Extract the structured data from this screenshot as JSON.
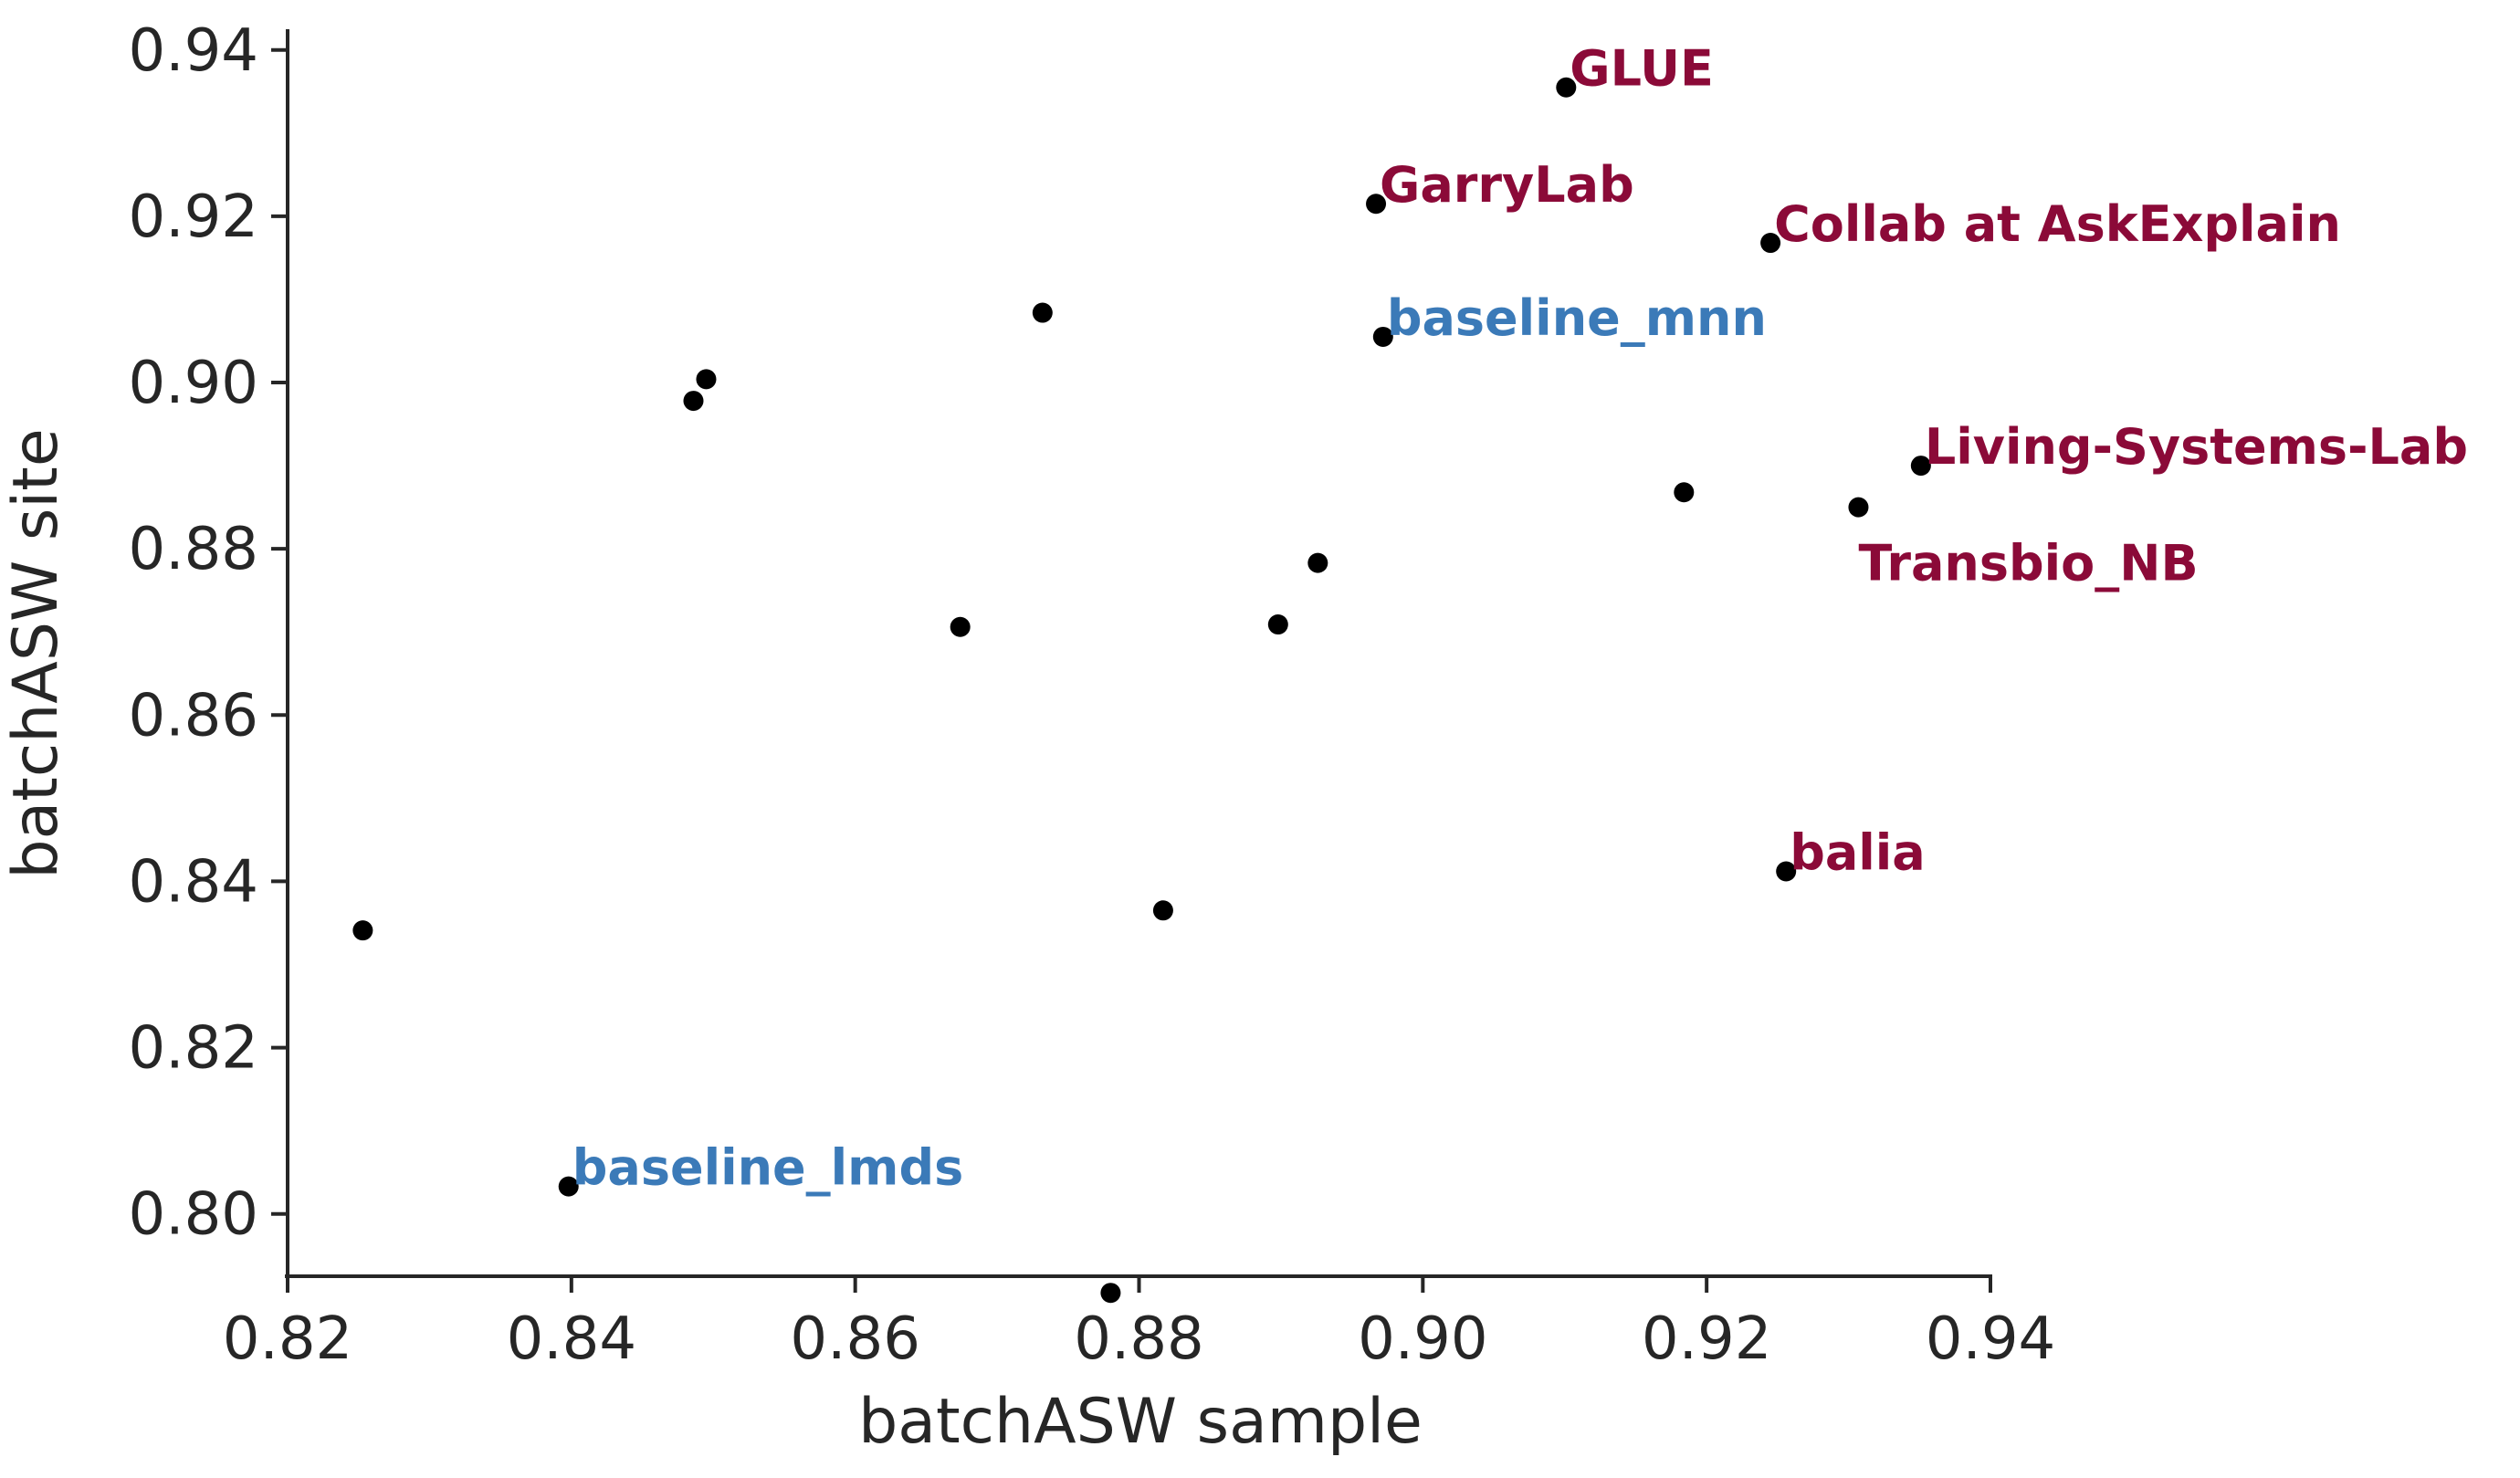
{
  "chart_data": {
    "type": "scatter",
    "xlabel": "batchASW sample",
    "ylabel": "batchASW site",
    "xlim": [
      0.82,
      0.94
    ],
    "ylim": [
      0.7925,
      0.9425
    ],
    "xticks": [
      0.82,
      0.84,
      0.86,
      0.88,
      0.9,
      0.92,
      0.94
    ],
    "xtick_labels": [
      "0.82",
      "0.84",
      "0.86",
      "0.88",
      "0.90",
      "0.92",
      "0.94"
    ],
    "yticks": [
      0.8,
      0.82,
      0.84,
      0.86,
      0.88,
      0.9,
      0.92,
      0.94
    ],
    "ytick_labels": [
      "0.80",
      "0.82",
      "0.84",
      "0.86",
      "0.88",
      "0.90",
      "0.92",
      "0.94"
    ],
    "grid": false,
    "colors": {
      "team": "#8b0a38",
      "baseline": "#3b7ab8",
      "point": "#000000",
      "axis": "#262626"
    },
    "points": [
      {
        "x": 0.9101,
        "y": 0.9355,
        "label": "GLUE",
        "group": "team",
        "anchor": "right"
      },
      {
        "x": 0.8967,
        "y": 0.9215,
        "label": "GarryLab",
        "group": "team",
        "anchor": "right"
      },
      {
        "x": 0.9245,
        "y": 0.9168,
        "label": "Collab at AskExplain",
        "group": "team",
        "anchor": "right"
      },
      {
        "x": 0.8972,
        "y": 0.9055,
        "label": "baseline_mnn",
        "group": "baseline",
        "anchor": "right"
      },
      {
        "x": 0.9351,
        "y": 0.89,
        "label": "Living-Systems-Lab",
        "group": "team",
        "anchor": "right"
      },
      {
        "x": 0.9307,
        "y": 0.885,
        "label": "Transbio_NB",
        "group": "team",
        "anchor": "below"
      },
      {
        "x": 0.9256,
        "y": 0.8412,
        "label": "balia",
        "group": "team",
        "anchor": "right"
      },
      {
        "x": 0.8398,
        "y": 0.8033,
        "label": "baseline_lmds",
        "group": "baseline",
        "anchor": "right"
      },
      {
        "x": 0.8732,
        "y": 0.9084
      },
      {
        "x": 0.8495,
        "y": 0.9004
      },
      {
        "x": 0.8486,
        "y": 0.8978
      },
      {
        "x": 0.9184,
        "y": 0.8868
      },
      {
        "x": 0.8926,
        "y": 0.8783
      },
      {
        "x": 0.8674,
        "y": 0.8706
      },
      {
        "x": 0.8898,
        "y": 0.8709
      },
      {
        "x": 0.8817,
        "y": 0.8365
      },
      {
        "x": 0.8253,
        "y": 0.8341
      },
      {
        "x": 0.878,
        "y": 0.7905
      }
    ]
  }
}
